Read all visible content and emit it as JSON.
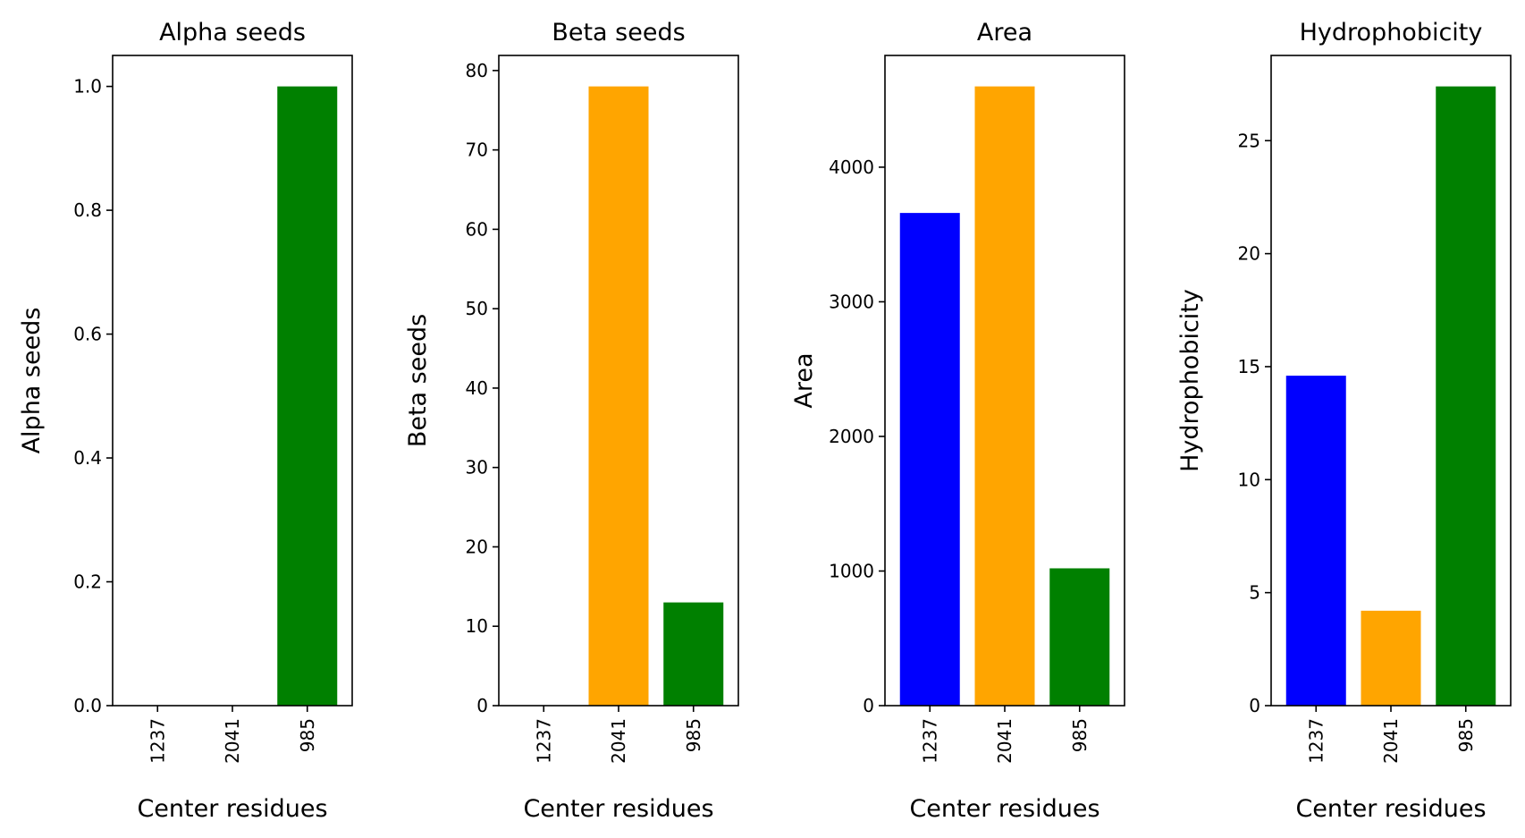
{
  "chart_data": [
    {
      "type": "bar",
      "title": "Alpha seeds",
      "xlabel": "Center residues",
      "ylabel": "Alpha seeds",
      "categories": [
        "1237",
        "2041",
        "985"
      ],
      "values": [
        0,
        0,
        1.0
      ],
      "colors": [
        "#0000ff",
        "#ffa500",
        "#008000"
      ],
      "ylim": [
        0,
        1.05
      ],
      "yticks": [
        0.0,
        0.2,
        0.4,
        0.6,
        0.8,
        1.0
      ],
      "ytick_labels": [
        "0.0",
        "0.2",
        "0.4",
        "0.6",
        "0.8",
        "1.0"
      ],
      "grid": false,
      "xtick_rotation": "vertical"
    },
    {
      "type": "bar",
      "title": "Beta seeds",
      "xlabel": "Center residues",
      "ylabel": "Beta seeds",
      "categories": [
        "1237",
        "2041",
        "985"
      ],
      "values": [
        0,
        78,
        13
      ],
      "colors": [
        "#0000ff",
        "#ffa500",
        "#008000"
      ],
      "ylim": [
        0,
        81.9
      ],
      "yticks": [
        0,
        10,
        20,
        30,
        40,
        50,
        60,
        70,
        80
      ],
      "ytick_labels": [
        "0",
        "10",
        "20",
        "30",
        "40",
        "50",
        "60",
        "70",
        "80"
      ],
      "grid": false,
      "xtick_rotation": "vertical"
    },
    {
      "type": "bar",
      "title": "Area",
      "xlabel": "Center residues",
      "ylabel": "Area",
      "categories": [
        "1237",
        "2041",
        "985"
      ],
      "values": [
        3660,
        4600,
        1020
      ],
      "colors": [
        "#0000ff",
        "#ffa500",
        "#008000"
      ],
      "ylim": [
        0,
        4830
      ],
      "yticks": [
        0,
        1000,
        2000,
        3000,
        4000
      ],
      "ytick_labels": [
        "0",
        "1000",
        "2000",
        "3000",
        "4000"
      ],
      "grid": false,
      "xtick_rotation": "vertical"
    },
    {
      "type": "bar",
      "title": "Hydrophobicity",
      "xlabel": "Center residues",
      "ylabel": "Hydrophobicity",
      "categories": [
        "1237",
        "2041",
        "985"
      ],
      "values": [
        14.6,
        4.2,
        27.4
      ],
      "colors": [
        "#0000ff",
        "#ffa500",
        "#008000"
      ],
      "ylim": [
        0,
        28.77
      ],
      "yticks": [
        0,
        5,
        10,
        15,
        20,
        25
      ],
      "ytick_labels": [
        "0",
        "5",
        "10",
        "15",
        "20",
        "25"
      ],
      "grid": false,
      "xtick_rotation": "vertical"
    }
  ]
}
